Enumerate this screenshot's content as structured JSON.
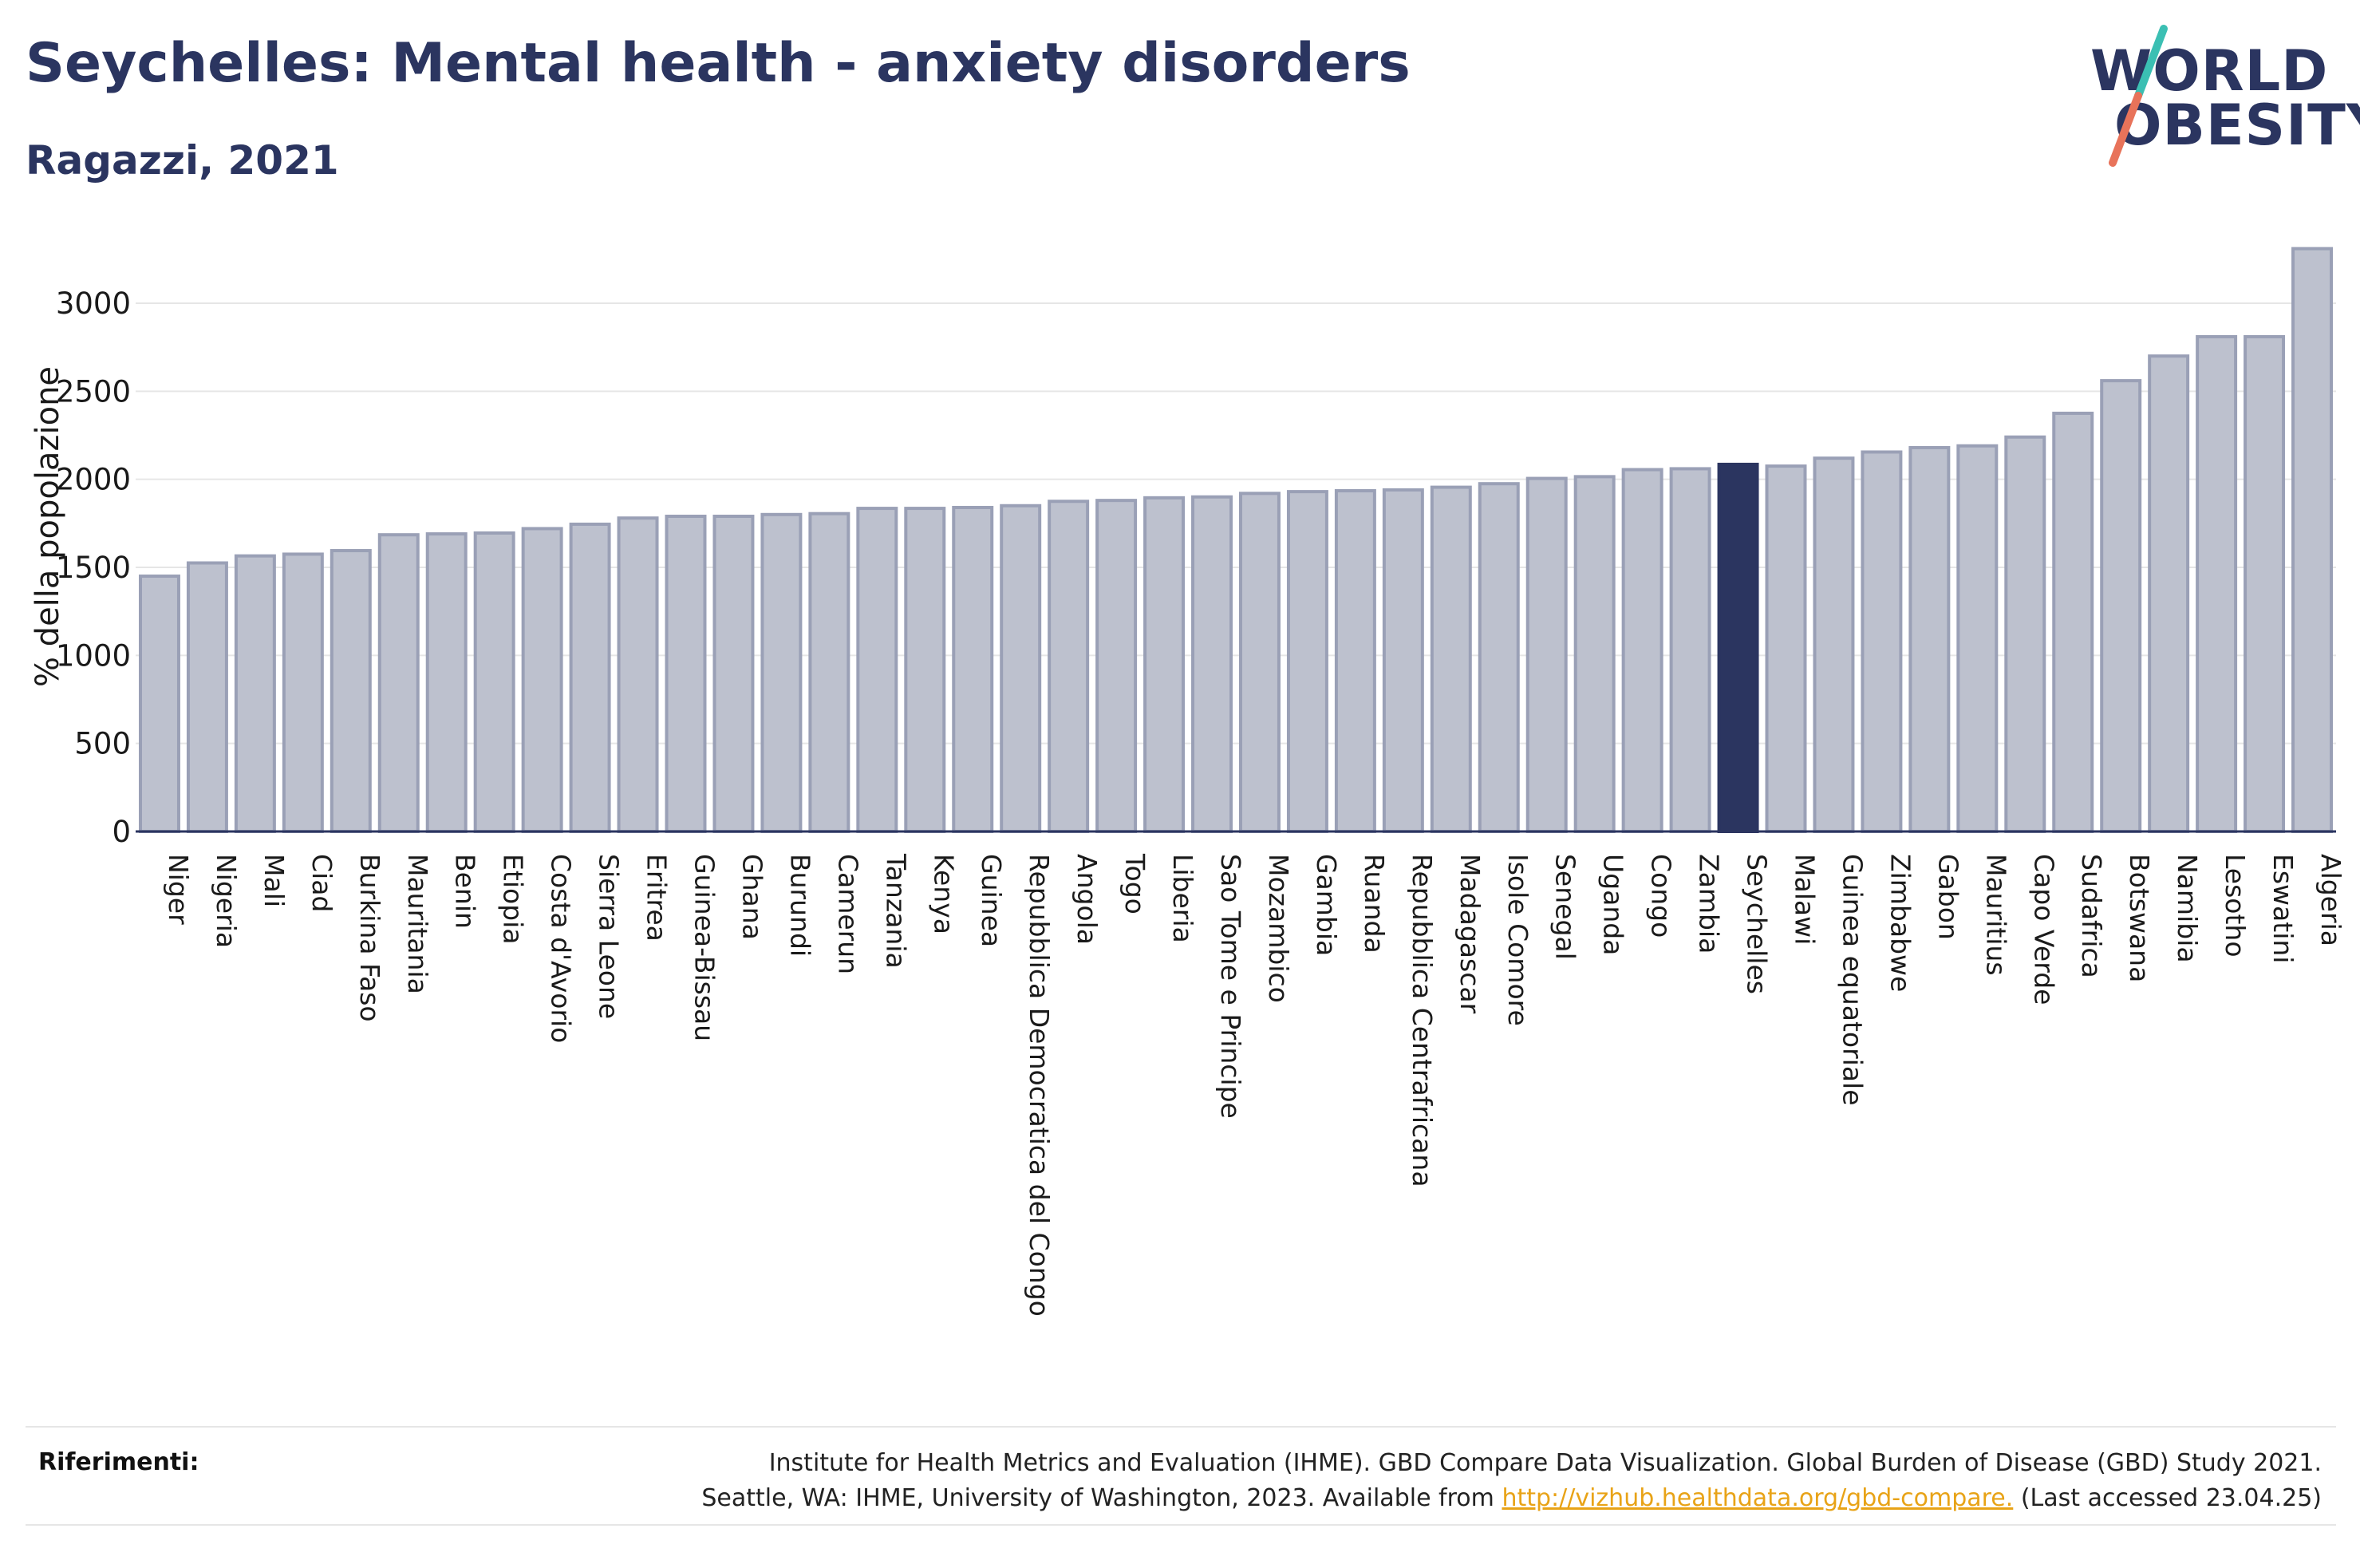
{
  "header": {
    "title": "Seychelles: Mental health - anxiety disorders",
    "subtitle": "Ragazzi, 2021"
  },
  "logo": {
    "line1": "WORLD",
    "line2": "OBESITY",
    "colors": [
      "#2b3560",
      "#3bbfb3",
      "#e8735a"
    ]
  },
  "chart_data": {
    "type": "bar",
    "title": "Seychelles: Mental health - anxiety disorders",
    "subtitle": "Ragazzi, 2021",
    "xlabel": "",
    "ylabel": "% della popolazione",
    "ylim": [
      0,
      3300
    ],
    "yticks": [
      0,
      500,
      1000,
      1500,
      2000,
      2500,
      3000
    ],
    "grid": true,
    "highlight": "Seychelles",
    "colors": {
      "bar": "#bdc1ce",
      "bar_edge": "#9aa0b6",
      "highlight": "#2b3560",
      "grid": "#e6e6e6",
      "axis": "#2b3560"
    },
    "categories": [
      "Niger",
      "Nigeria",
      "Mali",
      "Ciad",
      "Burkina Faso",
      "Mauritania",
      "Benin",
      "Etiopia",
      "Costa d'Avorio",
      "Sierra Leone",
      "Eritrea",
      "Guinea-Bissau",
      "Ghana",
      "Burundi",
      "Camerun",
      "Tanzania",
      "Kenya",
      "Guinea",
      "Repubblica Democratica del Congo",
      "Angola",
      "Togo",
      "Liberia",
      "Sao Tome e Principe",
      "Mozambico",
      "Gambia",
      "Ruanda",
      "Repubblica Centrafricana",
      "Madagascar",
      "Isole Comore",
      "Senegal",
      "Uganda",
      "Congo",
      "Zambia",
      "Seychelles",
      "Malawi",
      "Guinea equatoriale",
      "Zimbabwe",
      "Gabon",
      "Mauritius",
      "Capo Verde",
      "Sudafrica",
      "Botswana",
      "Namibia",
      "Lesotho",
      "Eswatini",
      "Algeria"
    ],
    "values": [
      1450,
      1525,
      1565,
      1575,
      1595,
      1685,
      1690,
      1695,
      1720,
      1745,
      1780,
      1790,
      1790,
      1800,
      1805,
      1835,
      1835,
      1840,
      1850,
      1875,
      1880,
      1895,
      1900,
      1920,
      1930,
      1935,
      1940,
      1955,
      1975,
      2005,
      2015,
      2055,
      2060,
      2085,
      2075,
      2120,
      2155,
      2180,
      2190,
      2240,
      2375,
      2560,
      2700,
      2810,
      2810,
      3310
    ]
  },
  "footer": {
    "ref_label": "Riferimenti:",
    "ref_line1": "Institute for Health Metrics and Evaluation (IHME). GBD Compare Data Visualization. Global Burden of Disease (GBD) Study 2021.",
    "ref_line2_pre": "Seattle, WA: IHME, University of Washington, 2023. Available from",
    "ref_link": "http://vizhub.healthdata.org/gbd-compare.",
    "ref_line2_post": "(Last accessed 23.04.25)"
  }
}
